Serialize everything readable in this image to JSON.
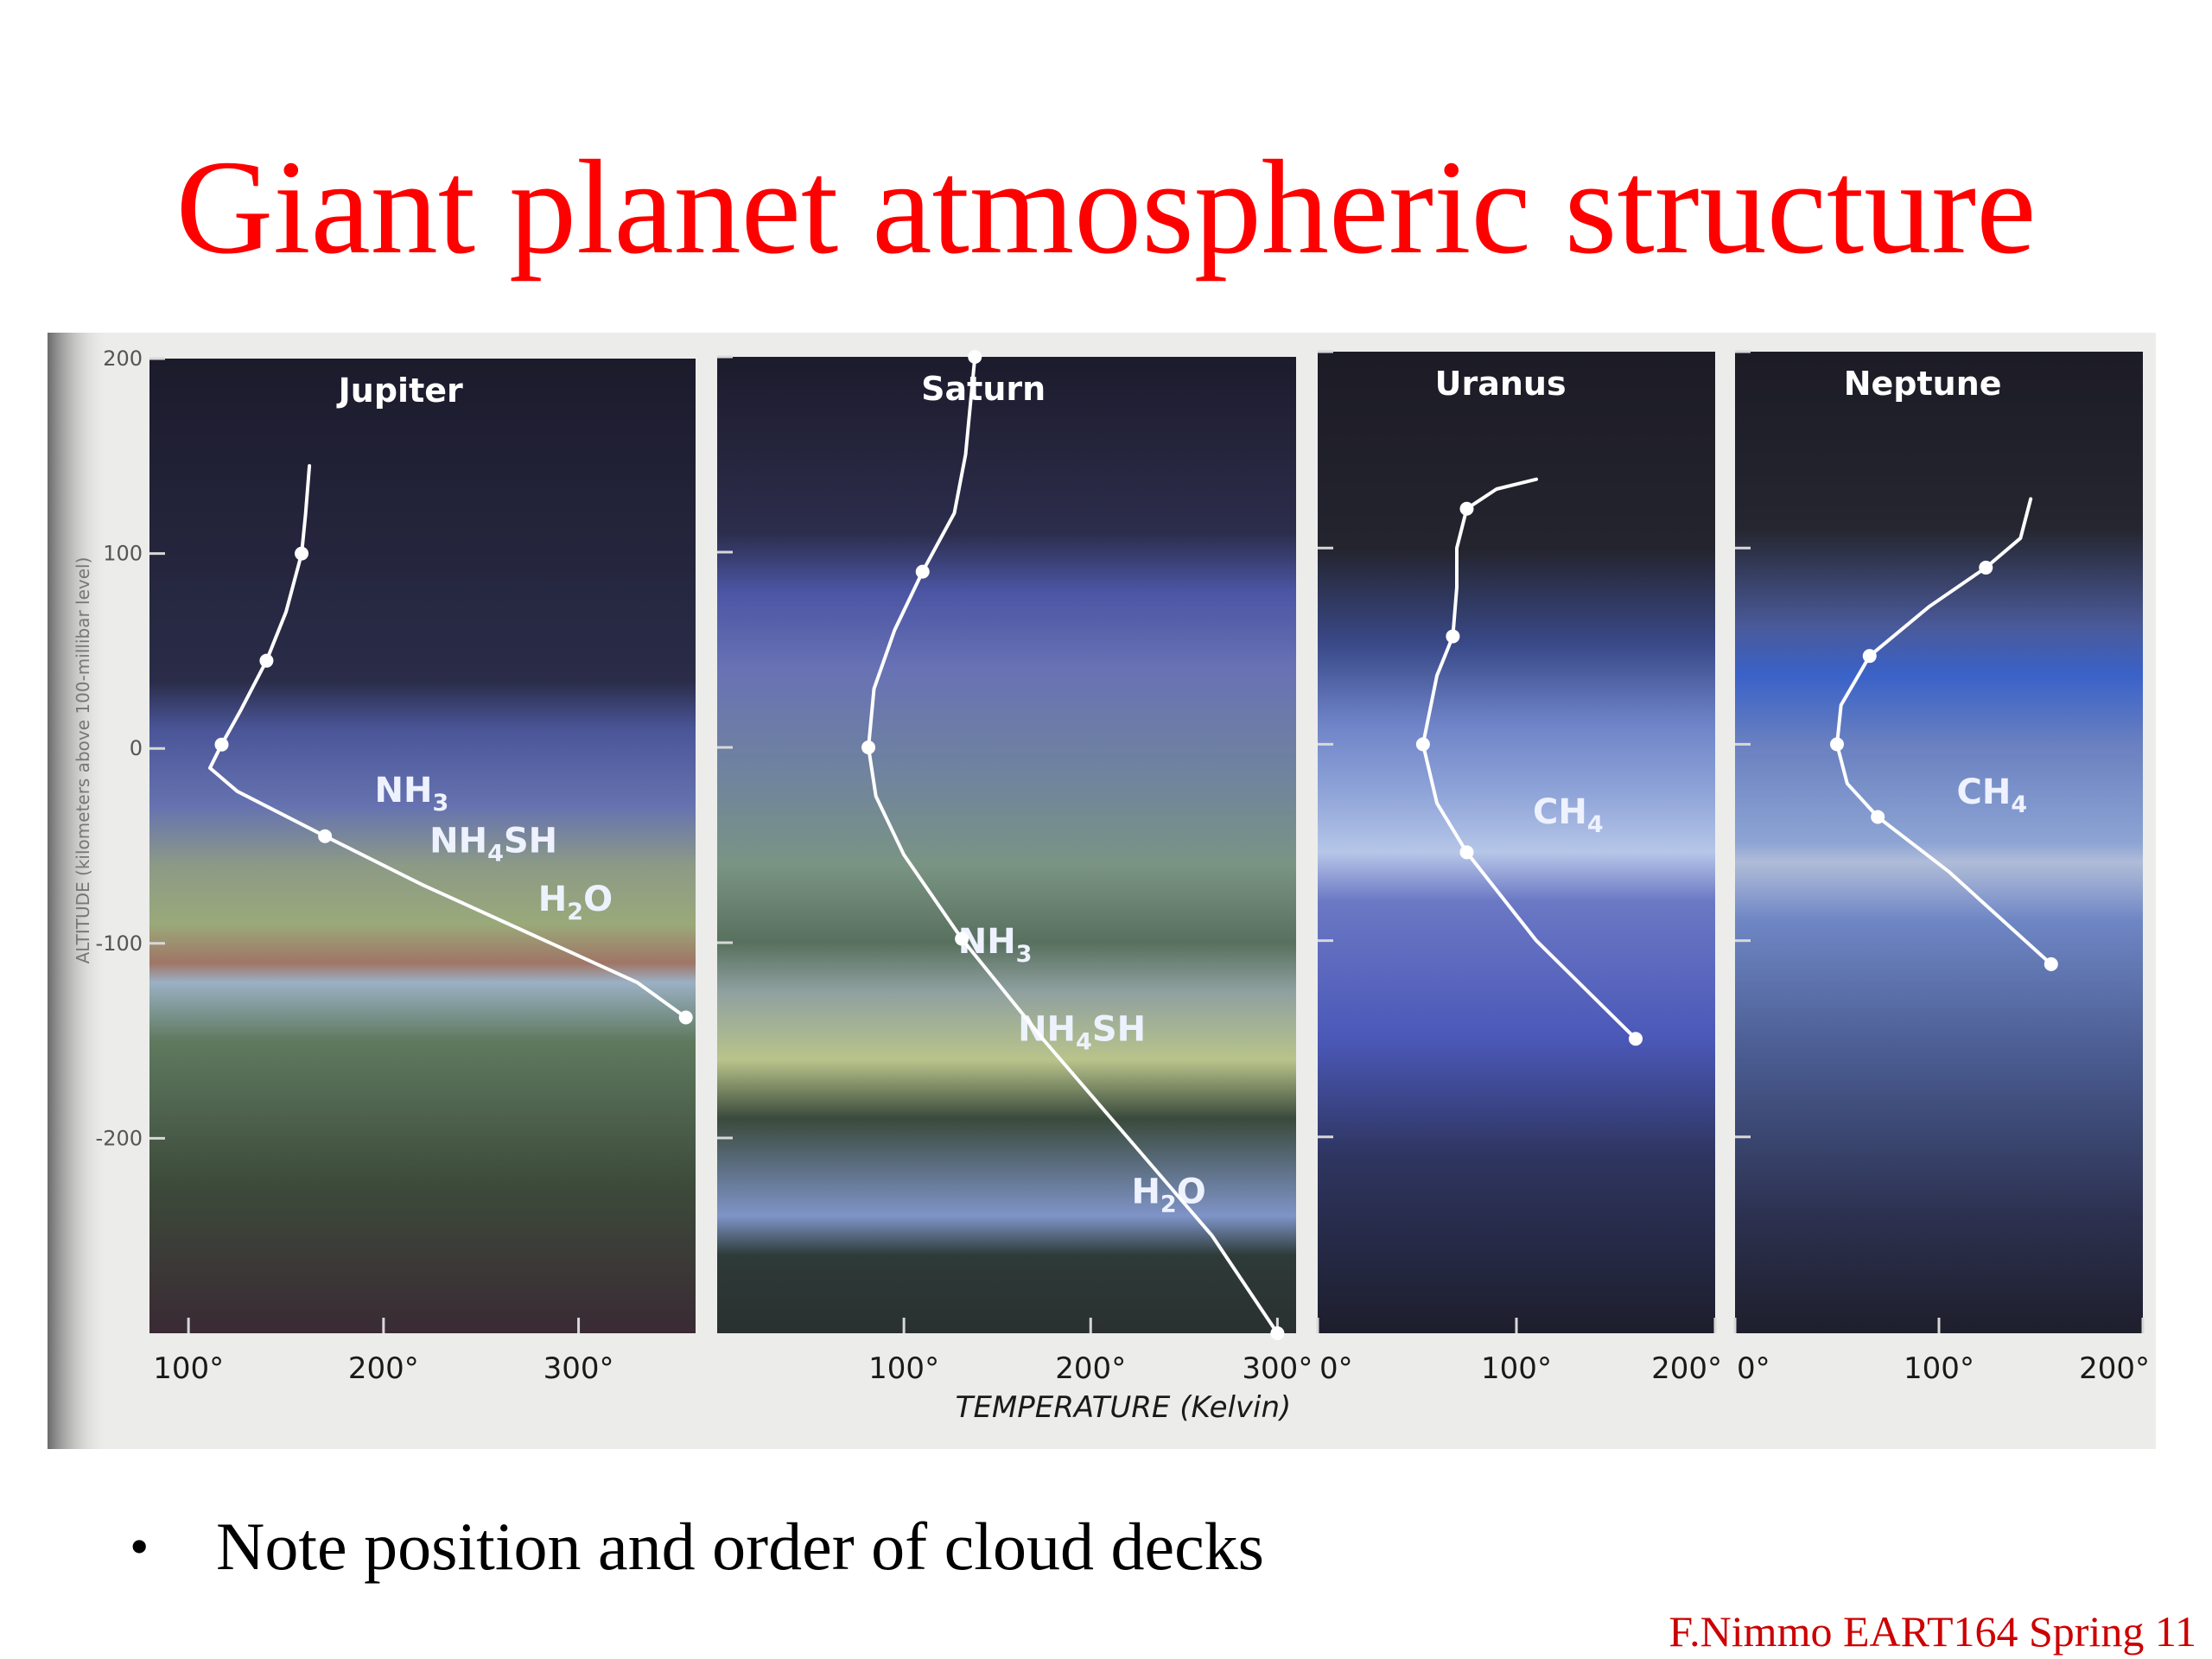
{
  "slide": {
    "title": "Giant planet atmospheric structure",
    "bullet": "Note position and order of cloud decks",
    "footer": "F.Nimmo EART164 Spring 11"
  },
  "colors": {
    "title": "#ff0000",
    "footer": "#cc0000",
    "curve": "#ffffff",
    "panel_bg": "#1b1a2e",
    "jupiter_haze": "#5a6aa8",
    "saturn_haze": "#6a73b8",
    "uranus_haze": "#4a63c8",
    "neptune_haze": "#3b63c8"
  },
  "chart_data": {
    "type": "line",
    "xlabel": "TEMPERATURE (Kelvin)",
    "ylabel": "ALTITUDE (kilometers above 100-millibar level)",
    "ylim": [
      -300,
      200
    ],
    "yticks": [
      200,
      100,
      0,
      -100,
      -200
    ],
    "ytick_labels": [
      "200",
      "100",
      "0",
      "-100",
      "-200"
    ],
    "grid": false,
    "legend": "none",
    "panels": [
      {
        "name": "Jupiter",
        "xlim": [
          80,
          360
        ],
        "xticks": [
          100,
          200,
          300
        ],
        "xtick_labels": [
          "100°",
          "200°",
          "300°"
        ],
        "profile": [
          [
            162,
            145
          ],
          [
            160,
            120
          ],
          [
            158,
            100
          ],
          [
            150,
            70
          ],
          [
            140,
            45
          ],
          [
            127,
            20
          ],
          [
            117,
            2
          ],
          [
            111,
            -10
          ],
          [
            125,
            -22
          ],
          [
            170,
            -45
          ],
          [
            220,
            -70
          ],
          [
            275,
            -95
          ],
          [
            330,
            -120
          ],
          [
            355,
            -138
          ]
        ],
        "markers": [
          [
            158,
            100
          ],
          [
            140,
            45
          ],
          [
            117,
            2
          ],
          [
            170,
            -45
          ],
          [
            355,
            -138
          ]
        ],
        "clouds": [
          {
            "label": "NH3",
            "altitude": -22
          },
          {
            "label": "NH4SH",
            "altitude": -48
          },
          {
            "label": "H2O",
            "altitude": -78
          }
        ],
        "show_y_axis": true
      },
      {
        "name": "Saturn",
        "xlim": [
          0,
          310
        ],
        "xticks": [
          100,
          200,
          300
        ],
        "xtick_labels": [
          "100°",
          "200°",
          "300°"
        ],
        "profile": [
          [
            138,
            200
          ],
          [
            133,
            150
          ],
          [
            127,
            120
          ],
          [
            110,
            90
          ],
          [
            95,
            60
          ],
          [
            84,
            30
          ],
          [
            81,
            0
          ],
          [
            85,
            -25
          ],
          [
            100,
            -55
          ],
          [
            131,
            -98
          ],
          [
            175,
            -150
          ],
          [
            220,
            -200
          ],
          [
            265,
            -250
          ],
          [
            300,
            -300
          ]
        ],
        "markers": [
          [
            138,
            200
          ],
          [
            110,
            90
          ],
          [
            81,
            0
          ],
          [
            131,
            -98
          ],
          [
            300,
            -300
          ]
        ],
        "clouds": [
          {
            "label": "NH3",
            "altitude": -100
          },
          {
            "label": "NH4SH",
            "altitude": -145
          },
          {
            "label": "H2O",
            "altitude": -228
          }
        ],
        "show_y_axis": false
      },
      {
        "name": "Uranus",
        "xlim": [
          0,
          200
        ],
        "xticks": [
          0,
          100,
          200
        ],
        "xtick_labels": [
          "0°",
          "100°",
          "200°"
        ],
        "profile": [
          [
            110,
            135
          ],
          [
            90,
            130
          ],
          [
            75,
            120
          ],
          [
            70,
            100
          ],
          [
            70,
            80
          ],
          [
            68,
            55
          ],
          [
            60,
            35
          ],
          [
            53,
            0
          ],
          [
            60,
            -30
          ],
          [
            75,
            -55
          ],
          [
            110,
            -100
          ],
          [
            160,
            -150
          ]
        ],
        "markers": [
          [
            75,
            120
          ],
          [
            68,
            55
          ],
          [
            53,
            0
          ],
          [
            75,
            -55
          ],
          [
            160,
            -150
          ]
        ],
        "clouds": [
          {
            "label": "CH4",
            "altitude": -35
          }
        ],
        "show_y_axis": false
      },
      {
        "name": "Neptune",
        "xlim": [
          0,
          200
        ],
        "xticks": [
          0,
          100,
          200
        ],
        "xtick_labels": [
          "0°",
          "100°",
          "200°"
        ],
        "profile": [
          [
            145,
            125
          ],
          [
            140,
            105
          ],
          [
            123,
            90
          ],
          [
            95,
            70
          ],
          [
            66,
            45
          ],
          [
            52,
            20
          ],
          [
            50,
            0
          ],
          [
            55,
            -20
          ],
          [
            70,
            -37
          ],
          [
            105,
            -65
          ],
          [
            155,
            -112
          ]
        ],
        "markers": [
          [
            123,
            90
          ],
          [
            66,
            45
          ],
          [
            50,
            0
          ],
          [
            70,
            -37
          ],
          [
            155,
            -112
          ]
        ],
        "clouds": [
          {
            "label": "CH4",
            "altitude": -25
          }
        ],
        "show_y_axis": false
      }
    ]
  }
}
